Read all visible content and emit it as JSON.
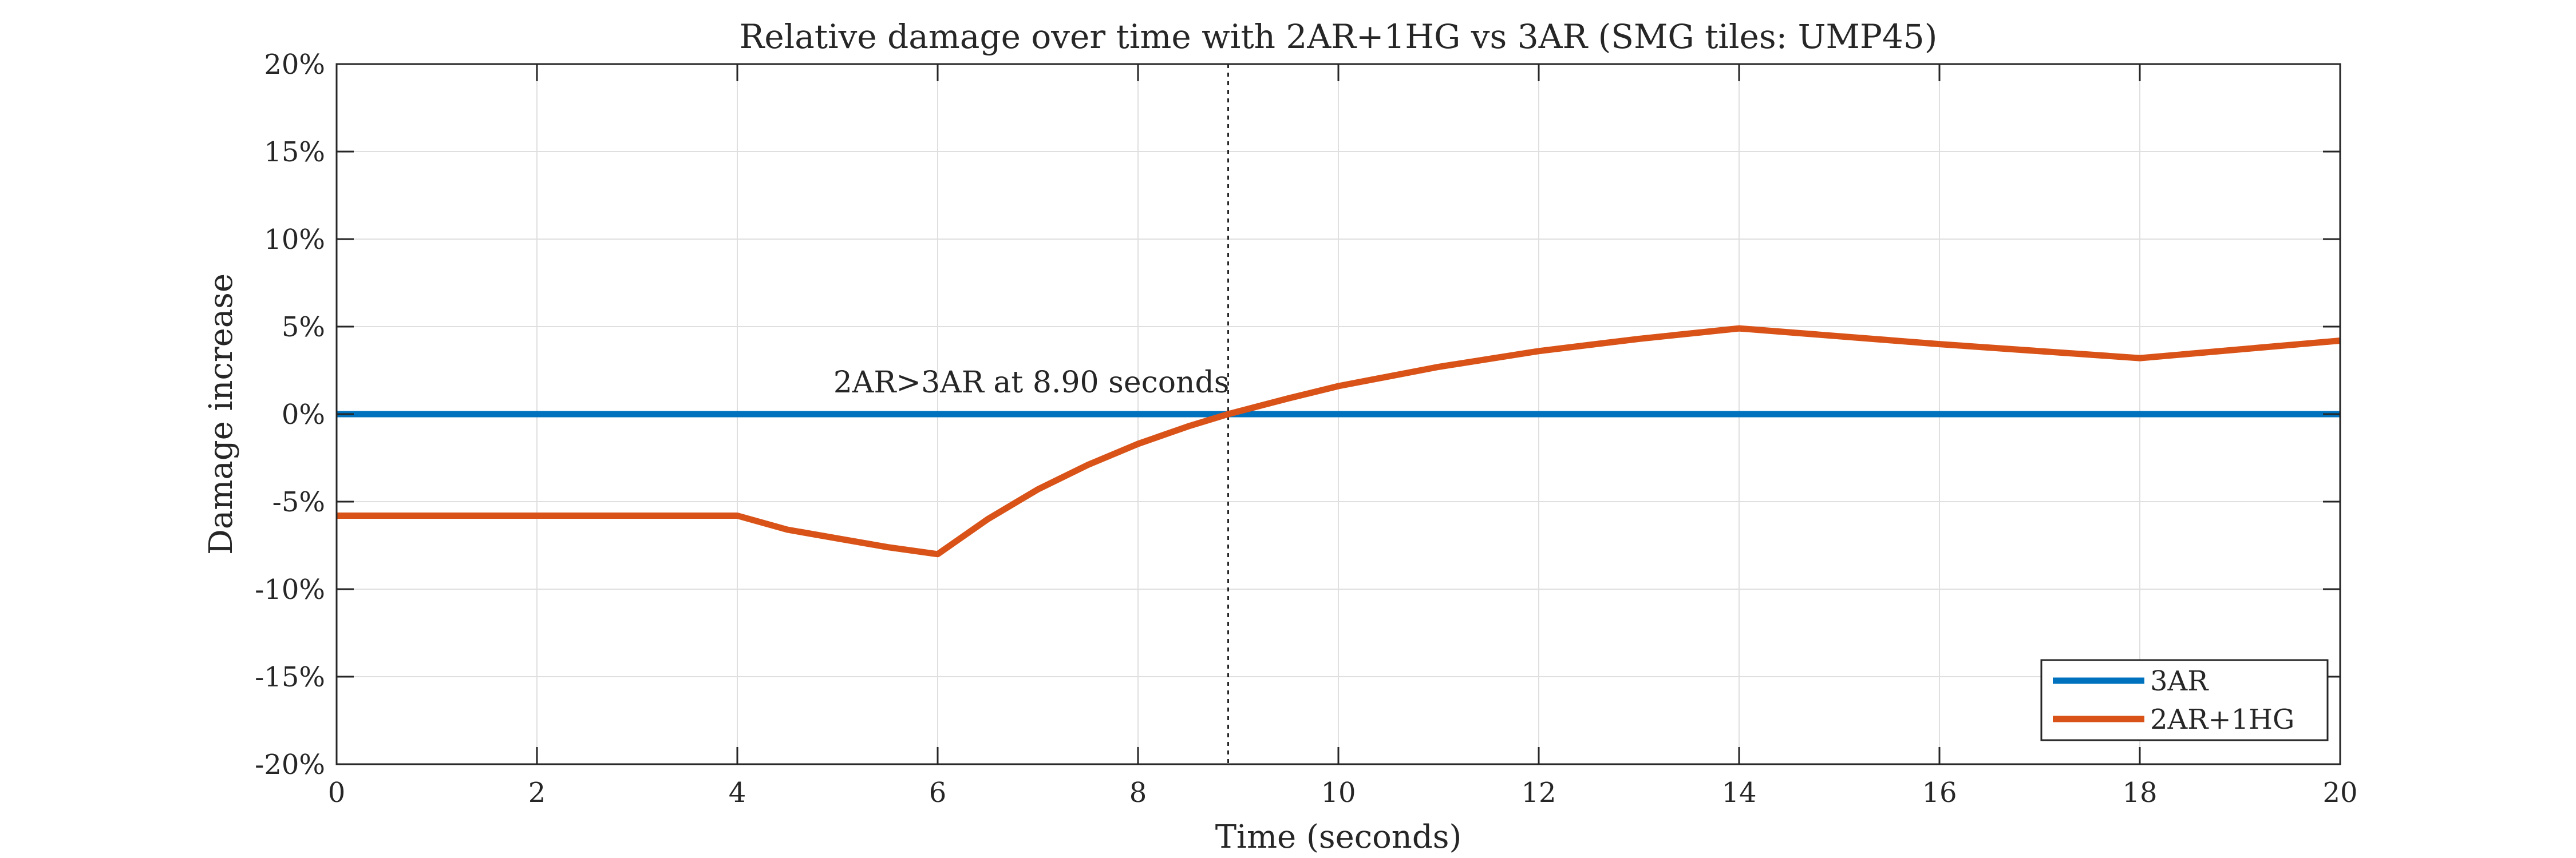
{
  "chart_data": {
    "type": "line",
    "title": "Relative damage over time with 2AR+1HG vs 3AR (SMG tiles: UMP45)",
    "xlabel": "Time (seconds)",
    "ylabel": "Damage increase",
    "xlim": [
      0,
      20
    ],
    "ylim": [
      -20,
      20
    ],
    "x_ticks": [
      0,
      2,
      4,
      6,
      8,
      10,
      12,
      14,
      16,
      18,
      20
    ],
    "x_tick_labels": [
      "0",
      "2",
      "4",
      "6",
      "8",
      "10",
      "12",
      "14",
      "16",
      "18",
      "20"
    ],
    "y_ticks": [
      -20,
      -15,
      -10,
      -5,
      0,
      5,
      10,
      15,
      20
    ],
    "y_tick_labels": [
      "-20%",
      "-15%",
      "-10%",
      "-5%",
      "0%",
      "5%",
      "10%",
      "15%",
      "20%"
    ],
    "grid": true,
    "legend_position": "bottom-right",
    "series": [
      {
        "name": "3AR",
        "color": "#0072BD",
        "x": [
          0,
          20
        ],
        "y": [
          0,
          0
        ]
      },
      {
        "name": "2AR+1HG",
        "color": "#D95319",
        "x": [
          0,
          4,
          4.5,
          5,
          5.5,
          6,
          6.5,
          7,
          7.5,
          8,
          8.5,
          8.9,
          9.5,
          10,
          11,
          12,
          13,
          14,
          16,
          18,
          20
        ],
        "y": [
          -5.8,
          -5.8,
          -6.6,
          -7.1,
          -7.6,
          -8.0,
          -6.0,
          -4.3,
          -2.9,
          -1.7,
          -0.7,
          0.0,
          0.9,
          1.6,
          2.7,
          3.6,
          4.3,
          4.9,
          4.0,
          3.2,
          4.2
        ]
      }
    ],
    "reference_line": {
      "x": 8.9,
      "style": "dotted",
      "color": "#262626"
    },
    "annotation": {
      "text": "2AR>3AR at 8.90 seconds",
      "x": 8.9,
      "y": 0
    }
  }
}
